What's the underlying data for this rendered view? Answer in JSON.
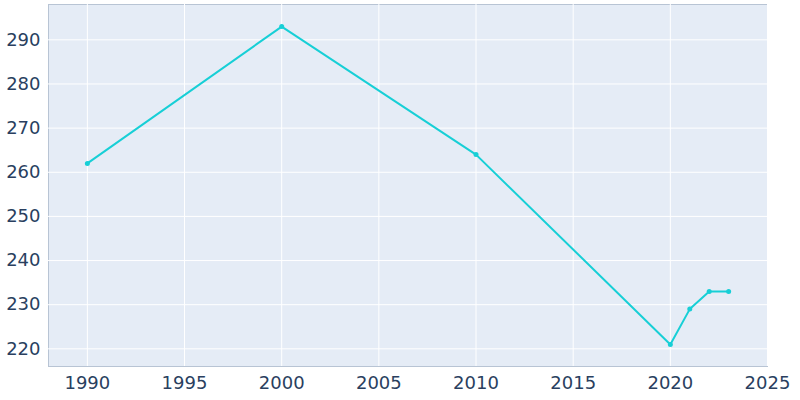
{
  "chart_data": {
    "type": "line",
    "x": [
      1990,
      2000,
      2010,
      2020,
      2021,
      2022,
      2023
    ],
    "values": [
      262,
      293,
      264,
      221,
      229,
      233,
      233
    ],
    "color": "#17cfd6",
    "marker": "circle",
    "line_style": "solid",
    "xlim": [
      1988,
      2025
    ],
    "xticks": [
      1990,
      1995,
      2000,
      2005,
      2010,
      2015,
      2020,
      2025
    ],
    "ylim": [
      216,
      298
    ],
    "yticks": [
      220,
      230,
      240,
      250,
      260,
      270,
      280,
      290
    ],
    "grid": true
  }
}
